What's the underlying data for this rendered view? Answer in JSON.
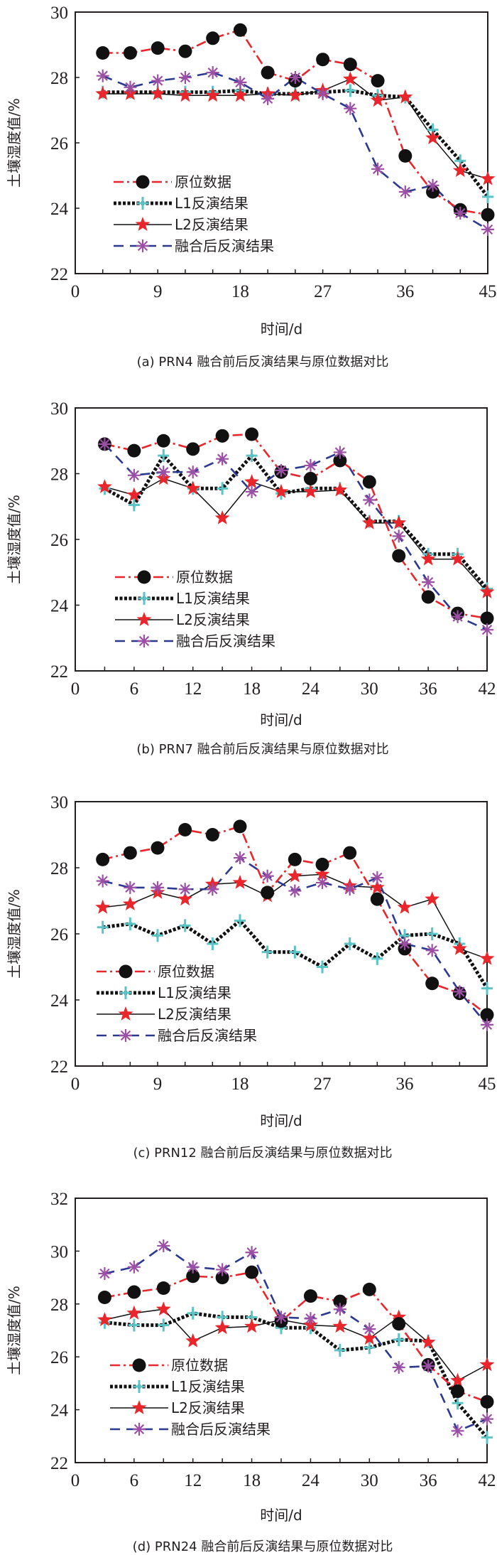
{
  "figure": {
    "series_names": [
      "原位数据",
      "L1反演结果",
      "L2反演结果",
      "融合后反演结果"
    ],
    "series_styles": [
      {
        "key": "insitu",
        "line_color": "#e8262b",
        "marker": "circle",
        "marker_color": "#111111",
        "dash": "dashdot"
      },
      {
        "key": "l1",
        "line_color": "#111111",
        "marker": "plus",
        "marker_color": "#5bc4c6",
        "dash": "dotted"
      },
      {
        "key": "l2",
        "line_color": "#111111",
        "marker": "star",
        "marker_color": "#e8262b",
        "dash": "solid"
      },
      {
        "key": "fused",
        "line_color": "#2b3990",
        "marker": "asterisk",
        "marker_color": "#9b4fa5",
        "dash": "dashed"
      }
    ]
  },
  "chart_data": [
    {
      "type": "line",
      "panel": "a",
      "title": "(a) PRN4 融合前后反演结果与原位数据对比",
      "xlabel": "时间/d",
      "ylabel": "土壤湿度值/%",
      "xlim": [
        0,
        45
      ],
      "ylim": [
        22,
        30
      ],
      "xticks": [
        0,
        9,
        18,
        27,
        36,
        45
      ],
      "yticks": [
        22,
        24,
        26,
        28,
        30
      ],
      "grid": false,
      "legend_position": "lower-left",
      "x": [
        3,
        6,
        9,
        12,
        15,
        18,
        21,
        24,
        27,
        30,
        33,
        36,
        39,
        42,
        45
      ],
      "series": [
        {
          "name": "原位数据",
          "values": [
            28.75,
            28.75,
            28.9,
            28.8,
            29.2,
            29.45,
            28.15,
            27.9,
            28.55,
            28.4,
            27.9,
            25.6,
            24.5,
            23.95,
            23.8
          ]
        },
        {
          "name": "L1反演结果",
          "values": [
            27.55,
            27.55,
            27.55,
            27.55,
            27.55,
            27.6,
            27.5,
            27.5,
            27.55,
            27.6,
            27.45,
            27.4,
            26.4,
            25.45,
            24.35
          ]
        },
        {
          "name": "L2反演结果",
          "values": [
            27.5,
            27.5,
            27.5,
            27.45,
            27.45,
            27.45,
            27.5,
            27.45,
            27.6,
            27.95,
            27.3,
            27.4,
            26.15,
            25.15,
            24.9
          ]
        },
        {
          "name": "融合后反演结果",
          "values": [
            28.05,
            27.7,
            27.9,
            28.0,
            28.15,
            27.85,
            27.35,
            28.0,
            27.5,
            27.05,
            25.2,
            24.5,
            24.7,
            23.85,
            23.35
          ]
        }
      ]
    },
    {
      "type": "line",
      "panel": "b",
      "title": "(b) PRN7 融合前后反演结果与原位数据对比",
      "xlabel": "时间/d",
      "ylabel": "土壤湿度值/%",
      "xlim": [
        0,
        42
      ],
      "ylim": [
        22,
        30
      ],
      "xticks": [
        0,
        6,
        12,
        18,
        24,
        30,
        36,
        42
      ],
      "yticks": [
        22,
        24,
        26,
        28,
        30
      ],
      "grid": false,
      "legend_position": "lower-left",
      "x": [
        3,
        6,
        9,
        12,
        15,
        18,
        21,
        24,
        27,
        30,
        33,
        36,
        39,
        42
      ],
      "series": [
        {
          "name": "原位数据",
          "values": [
            28.9,
            28.7,
            29.0,
            28.75,
            29.15,
            29.2,
            28.05,
            27.85,
            28.4,
            27.75,
            25.5,
            24.25,
            23.75,
            23.6
          ]
        },
        {
          "name": "L1反演结果",
          "values": [
            27.55,
            27.05,
            28.55,
            27.55,
            27.55,
            28.55,
            27.4,
            27.55,
            27.55,
            26.55,
            26.55,
            25.55,
            25.55,
            24.5
          ]
        },
        {
          "name": "L2反演结果",
          "values": [
            27.6,
            27.35,
            27.85,
            27.55,
            26.65,
            27.75,
            27.45,
            27.45,
            27.5,
            26.5,
            26.5,
            25.4,
            25.4,
            24.4
          ]
        },
        {
          "name": "融合后反演结果",
          "values": [
            28.9,
            27.95,
            28.05,
            28.05,
            28.45,
            27.45,
            28.1,
            28.25,
            28.65,
            27.2,
            26.1,
            24.7,
            23.65,
            23.25
          ]
        }
      ]
    },
    {
      "type": "line",
      "panel": "c",
      "title": "(c) PRN12 融合前后反演结果与原位数据对比",
      "xlabel": "时间/d",
      "ylabel": "土壤湿度值/%",
      "xlim": [
        0,
        45
      ],
      "ylim": [
        22,
        30
      ],
      "xticks": [
        0,
        9,
        18,
        27,
        36,
        45
      ],
      "yticks": [
        22,
        24,
        26,
        28,
        30
      ],
      "grid": false,
      "legend_position": "lower-left",
      "x": [
        3,
        6,
        9,
        12,
        15,
        18,
        21,
        24,
        27,
        30,
        33,
        36,
        39,
        42,
        45
      ],
      "series": [
        {
          "name": "原位数据",
          "values": [
            28.25,
            28.45,
            28.6,
            29.15,
            29.0,
            29.25,
            27.25,
            28.25,
            28.1,
            28.45,
            27.05,
            25.55,
            24.5,
            24.2,
            23.55
          ]
        },
        {
          "name": "L1反演结果",
          "values": [
            26.2,
            26.3,
            25.95,
            26.25,
            25.7,
            26.4,
            25.45,
            25.45,
            25.0,
            25.7,
            25.25,
            25.95,
            26.0,
            25.7,
            24.35
          ]
        },
        {
          "name": "L2反演结果",
          "values": [
            26.8,
            26.9,
            27.25,
            27.05,
            27.5,
            27.55,
            27.15,
            27.75,
            27.8,
            27.45,
            27.4,
            26.8,
            27.05,
            25.55,
            25.25
          ]
        },
        {
          "name": "融合后反演结果",
          "values": [
            27.6,
            27.4,
            27.4,
            27.35,
            27.35,
            28.3,
            27.75,
            27.3,
            27.55,
            27.35,
            27.7,
            25.7,
            25.5,
            24.25,
            23.25
          ]
        }
      ]
    },
    {
      "type": "line",
      "panel": "d",
      "title": "(d) PRN24 融合前后反演结果与原位数据对比",
      "xlabel": "时间/d",
      "ylabel": "土壤湿度值/%",
      "xlim": [
        0,
        42
      ],
      "ylim": [
        22,
        32
      ],
      "xticks": [
        0,
        6,
        12,
        18,
        24,
        30,
        36,
        42
      ],
      "yticks": [
        22,
        24,
        26,
        28,
        30,
        32
      ],
      "grid": false,
      "legend_position": "lower-left",
      "x": [
        3,
        6,
        9,
        12,
        15,
        18,
        21,
        24,
        27,
        30,
        33,
        36,
        39,
        42
      ],
      "series": [
        {
          "name": "原位数据",
          "values": [
            28.25,
            28.45,
            28.6,
            29.05,
            29.0,
            29.2,
            27.35,
            28.3,
            28.1,
            28.55,
            27.25,
            25.7,
            24.7,
            24.3
          ]
        },
        {
          "name": "L1反演结果",
          "values": [
            27.3,
            27.2,
            27.2,
            27.65,
            27.5,
            27.5,
            27.1,
            27.1,
            26.25,
            26.35,
            26.65,
            26.6,
            24.25,
            22.95
          ]
        },
        {
          "name": "L2反演结果",
          "values": [
            27.4,
            27.65,
            27.8,
            26.6,
            27.1,
            27.15,
            27.4,
            27.2,
            27.15,
            26.7,
            27.5,
            26.55,
            25.1,
            25.7
          ]
        },
        {
          "name": "融合后反演结果",
          "values": [
            29.15,
            29.4,
            30.2,
            29.4,
            29.3,
            29.95,
            27.5,
            27.45,
            27.8,
            27.05,
            25.6,
            25.65,
            23.2,
            23.65
          ]
        }
      ]
    }
  ]
}
